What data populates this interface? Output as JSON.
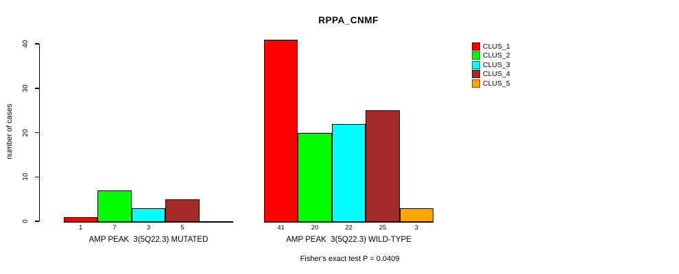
{
  "chart_data": {
    "type": "bar",
    "title": "RPPA_CNMF",
    "ylabel": "number of cases",
    "xlabel": "",
    "ylim": [
      0,
      40
    ],
    "yticks": [
      0,
      10,
      20,
      30,
      40
    ],
    "grid": false,
    "legend_position": "right",
    "legend": [
      {
        "label": "CLUS_1",
        "color": "#FF0000"
      },
      {
        "label": "CLUS_2",
        "color": "#00FF00"
      },
      {
        "label": "CLUS_3",
        "color": "#00FFFF"
      },
      {
        "label": "CLUS_4",
        "color": "#A52A2A"
      },
      {
        "label": "CLUS_5",
        "color": "#FFA500"
      }
    ],
    "series_names": [
      "CLUS_1",
      "CLUS_2",
      "CLUS_3",
      "CLUS_4",
      "CLUS_5"
    ],
    "groups": [
      {
        "label": "AMP PEAK  3(5Q22.3) MUTATED",
        "values": [
          1,
          7,
          3,
          5,
          0
        ]
      },
      {
        "label": "AMP PEAK  3(5Q22.3) WILD-TYPE",
        "values": [
          41,
          20,
          22,
          25,
          3
        ]
      }
    ],
    "annotation": "Fisher's exact test P = 0.0409",
    "bar_border_color": "#000000",
    "background_color": "#ffffff"
  }
}
